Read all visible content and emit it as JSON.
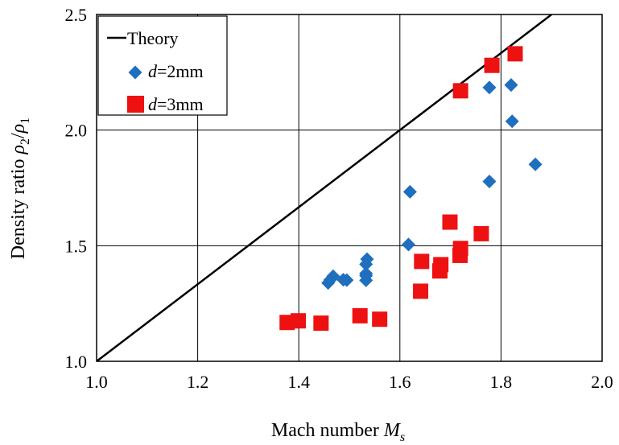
{
  "chart_data": {
    "type": "scatter",
    "xlabel": {
      "prefix": "Mach number ",
      "symbol": "M",
      "sub": "s"
    },
    "ylabel": {
      "prefix": "Density ratio ",
      "num": "ρ",
      "num_sub": "2",
      "slash": "/",
      "den": "ρ",
      "den_sub": "1"
    },
    "xlim": [
      1.0,
      2.0
    ],
    "ylim": [
      1.0,
      2.5
    ],
    "xticks": [
      "1.0",
      "1.2",
      "1.4",
      "1.6",
      "1.8",
      "2.0"
    ],
    "yticks": [
      "1.0",
      "1.5",
      "2.0",
      "2.5"
    ],
    "grid": true,
    "legend_position": "top-left",
    "series": [
      {
        "name": "Theory",
        "kind": "line",
        "color": "#000000",
        "x": [
          1.0,
          1.9
        ],
        "y": [
          1.0,
          2.5
        ]
      },
      {
        "name": "d=2mm",
        "legend_italic": "d",
        "legend_rest": "=2mm",
        "kind": "diamond",
        "color": "#1f6fbf",
        "x": [
          1.458,
          1.462,
          1.468,
          1.488,
          1.495,
          1.533,
          1.533,
          1.533,
          1.533,
          1.535,
          1.617,
          1.62,
          1.777,
          1.777,
          1.82,
          1.822,
          1.868
        ],
        "y": [
          1.339,
          1.352,
          1.368,
          1.353,
          1.351,
          1.35,
          1.37,
          1.38,
          1.42,
          1.442,
          1.505,
          1.733,
          1.778,
          2.184,
          2.195,
          2.038,
          1.852
        ]
      },
      {
        "name": "d=3mm",
        "legend_italic": "d",
        "legend_rest": "=3mm",
        "kind": "square",
        "color": "#ee1111",
        "x": [
          1.377,
          1.399,
          1.444,
          1.521,
          1.56,
          1.641,
          1.643,
          1.679,
          1.681,
          1.699,
          1.719,
          1.72,
          1.72,
          1.761,
          1.782,
          1.828
        ],
        "y": [
          1.168,
          1.175,
          1.165,
          1.197,
          1.182,
          1.303,
          1.432,
          1.391,
          1.418,
          1.602,
          1.458,
          1.488,
          2.17,
          1.552,
          2.28,
          2.33
        ]
      }
    ]
  }
}
